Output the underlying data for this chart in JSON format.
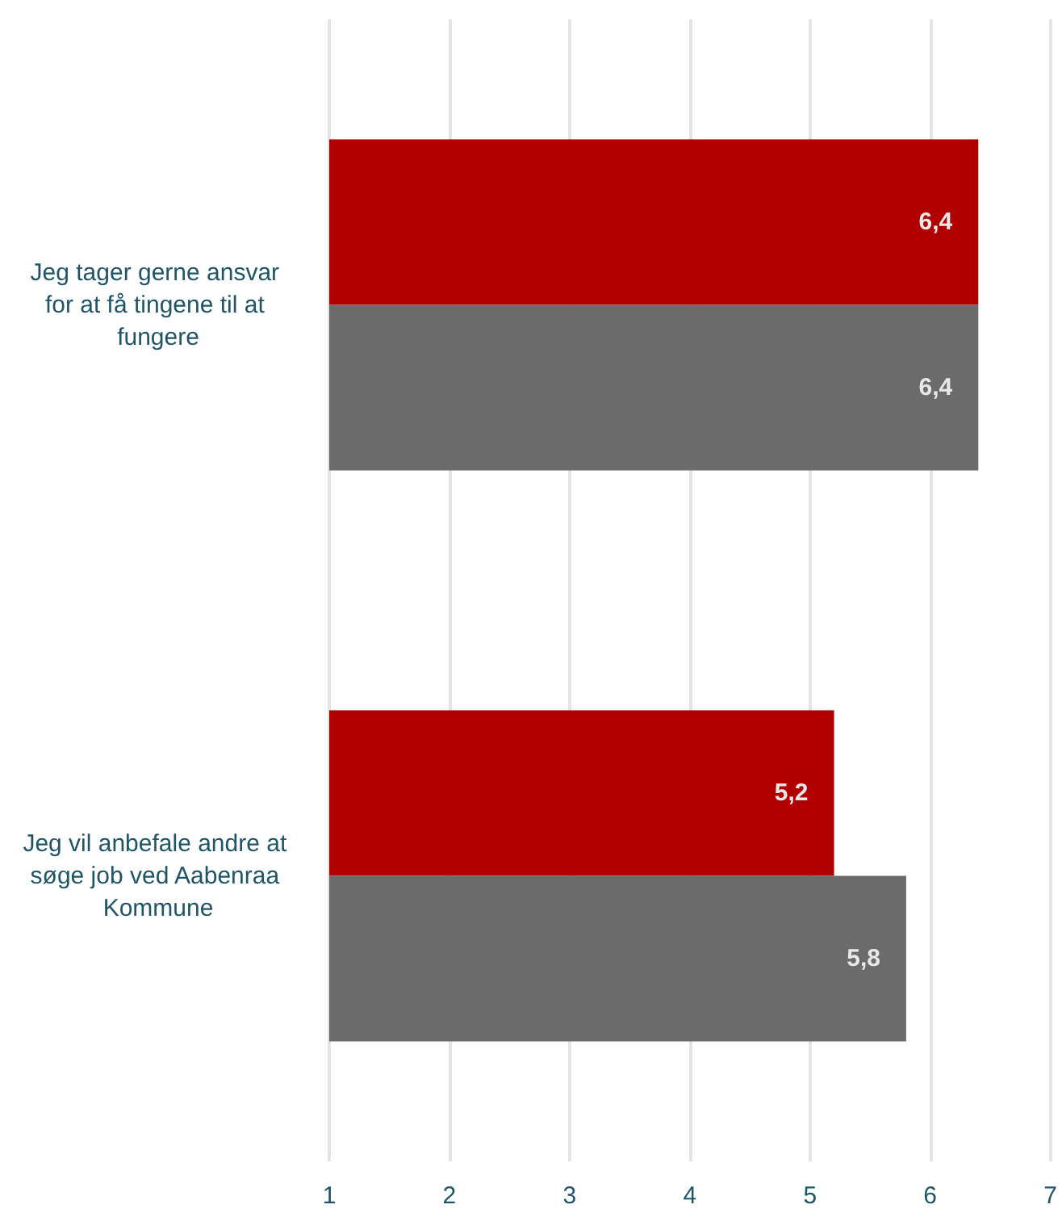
{
  "chart_data": {
    "type": "bar",
    "orientation": "horizontal",
    "categories": [
      "Jeg tager gerne ansvar for at få tingene til at fungere",
      "Jeg vil anbefale andre at søge job ved Aabenraa Kommune"
    ],
    "series": [
      {
        "color": "#b00000",
        "values": [
          6.4,
          5.2
        ],
        "value_labels": [
          "6,4",
          "5,2"
        ]
      },
      {
        "color": "#6b6b6b",
        "values": [
          6.4,
          5.8
        ],
        "value_labels": [
          "6,4",
          "5,8"
        ]
      }
    ],
    "xlim": [
      1,
      7
    ],
    "xticks": [
      1,
      2,
      3,
      4,
      5,
      6,
      7
    ],
    "grid": "x"
  }
}
